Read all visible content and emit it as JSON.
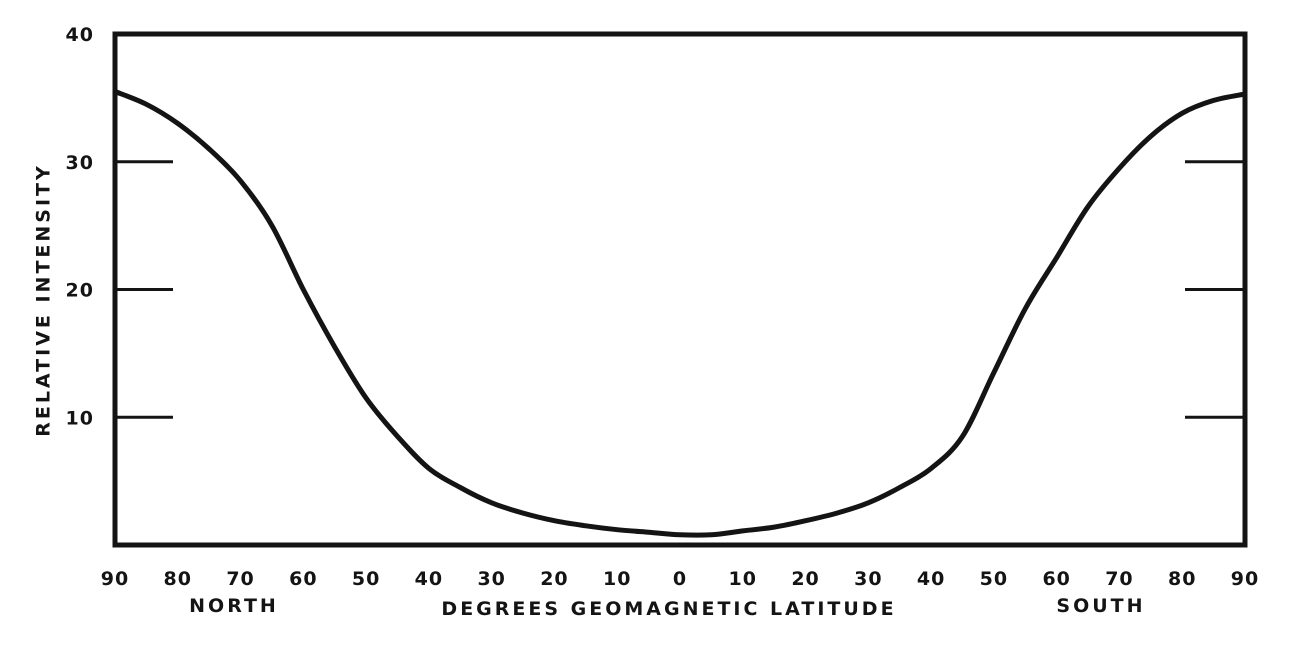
{
  "chart_data": {
    "type": "line",
    "xlabel": "DEGREES GEOMAGNETIC LATITUDE",
    "ylabel": "RELATIVE INTENSITY",
    "x_side_labels": {
      "left": "NORTH",
      "right": "SOUTH"
    },
    "x_tick_labels": [
      "90",
      "80",
      "70",
      "60",
      "50",
      "40",
      "30",
      "20",
      "10",
      "0",
      "10",
      "20",
      "30",
      "40",
      "50",
      "60",
      "70",
      "80",
      "90"
    ],
    "y_tick_labels": [
      "10",
      "20",
      "30",
      "40"
    ],
    "xlim": [
      -90,
      90
    ],
    "ylim": [
      0,
      40
    ],
    "x_note": "negative x = north latitude, positive x = south latitude",
    "grid": false,
    "series": [
      {
        "x": [
          -90,
          -85,
          -80,
          -75,
          -70,
          -65,
          -60,
          -55,
          -50,
          -45,
          -40,
          -35,
          -30,
          -25,
          -20,
          -15,
          -10,
          -5,
          0,
          5,
          10,
          15,
          20,
          25,
          30,
          35,
          40,
          45,
          50,
          55,
          60,
          65,
          70,
          75,
          80,
          85,
          90
        ],
        "values": [
          35.5,
          34.5,
          33.0,
          31.0,
          28.5,
          25.0,
          20.0,
          15.5,
          11.5,
          8.5,
          6.0,
          4.5,
          3.3,
          2.5,
          1.9,
          1.5,
          1.2,
          1.0,
          0.8,
          0.8,
          1.1,
          1.4,
          1.9,
          2.5,
          3.3,
          4.5,
          6.0,
          8.5,
          13.5,
          18.5,
          22.5,
          26.5,
          29.5,
          32.0,
          33.8,
          34.8,
          35.3
        ]
      }
    ]
  }
}
